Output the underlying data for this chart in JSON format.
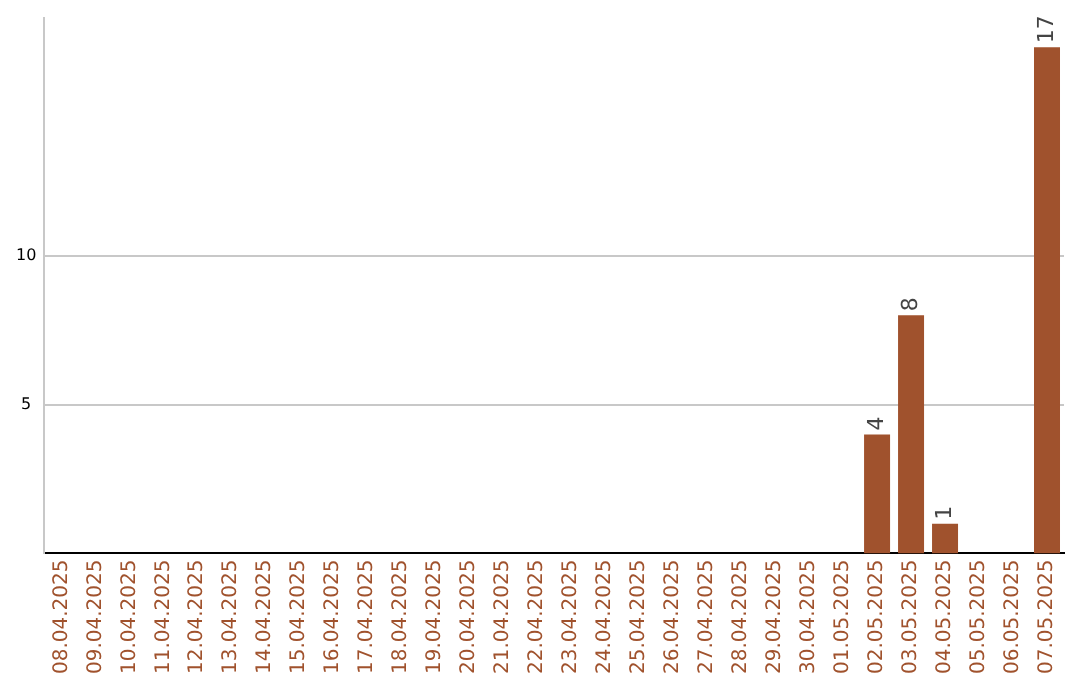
{
  "chart_data": {
    "type": "bar",
    "categories": [
      "08.04.2025",
      "09.04.2025",
      "10.04.2025",
      "11.04.2025",
      "12.04.2025",
      "13.04.2025",
      "14.04.2025",
      "15.04.2025",
      "16.04.2025",
      "17.04.2025",
      "18.04.2025",
      "19.04.2025",
      "20.04.2025",
      "21.04.2025",
      "22.04.2025",
      "23.04.2025",
      "24.04.2025",
      "25.04.2025",
      "26.04.2025",
      "27.04.2025",
      "28.04.2025",
      "29.04.2025",
      "30.04.2025",
      "01.05.2025",
      "02.05.2025",
      "03.05.2025",
      "04.05.2025",
      "05.05.2025",
      "06.05.2025",
      "07.05.2025"
    ],
    "values": [
      0,
      0,
      0,
      0,
      0,
      0,
      0,
      0,
      0,
      0,
      0,
      0,
      0,
      0,
      0,
      0,
      0,
      0,
      0,
      0,
      0,
      0,
      0,
      0,
      4,
      8,
      1,
      0,
      0,
      17
    ],
    "value_labels": [
      null,
      null,
      null,
      null,
      null,
      null,
      null,
      null,
      null,
      null,
      null,
      null,
      null,
      null,
      null,
      null,
      null,
      null,
      null,
      null,
      null,
      null,
      null,
      null,
      "4",
      "8",
      "1",
      null,
      null,
      "17"
    ],
    "color": "#a0522d",
    "ylim": [
      0,
      18
    ],
    "yticks": [
      5,
      10
    ],
    "grid": "y"
  }
}
